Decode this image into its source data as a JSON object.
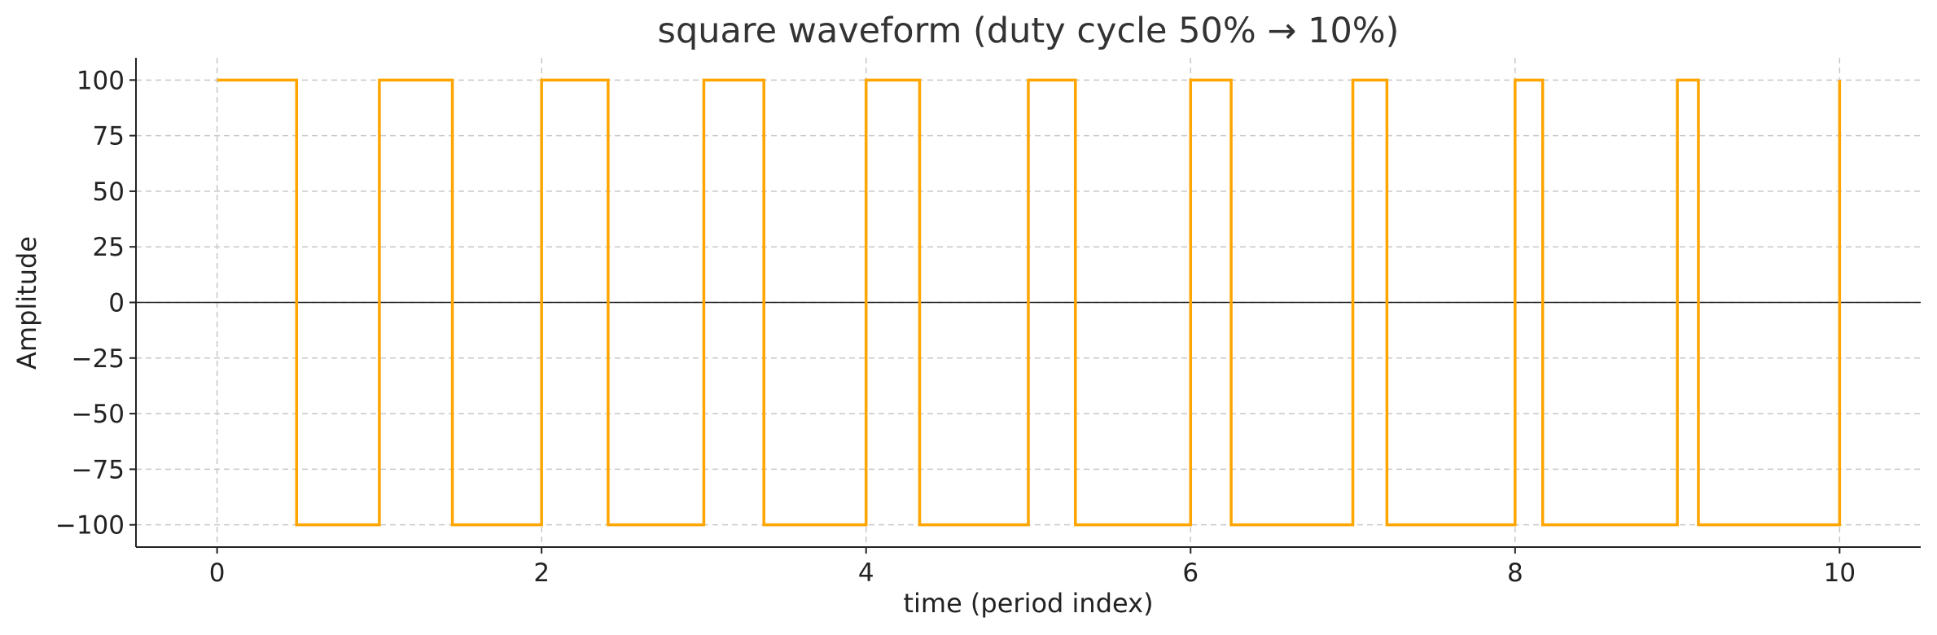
{
  "chart_data": {
    "type": "line",
    "title": "square waveform (duty cycle 50% → 10%)",
    "xlabel": "time (period index)",
    "ylabel": "Amplitude",
    "xlim": [
      -0.5,
      10.5
    ],
    "ylim": [
      -110,
      110
    ],
    "xticks": [
      0,
      2,
      4,
      6,
      8,
      10
    ],
    "yticks": [
      100,
      75,
      50,
      25,
      0,
      -25,
      -50,
      -75,
      -100
    ],
    "xtick_labels": [
      "0",
      "2",
      "4",
      "6",
      "8",
      "10"
    ],
    "ytick_labels": [
      "100",
      "75",
      "50",
      "25",
      "0",
      "−25",
      "−50",
      "−75",
      "−100"
    ],
    "grid": true,
    "zero_line": true,
    "series": [
      {
        "color": "#FFA500",
        "step": "post",
        "x": [
          0,
          0.49,
          1.0,
          1.45,
          2.0,
          2.41,
          3.0,
          3.37,
          4.0,
          4.33,
          5.0,
          5.29,
          6.0,
          6.25,
          7.0,
          7.21,
          8.0,
          8.17,
          9.0,
          9.13,
          10.0
        ],
        "y": [
          100,
          -100,
          100,
          -100,
          100,
          -100,
          100,
          -100,
          100,
          -100,
          100,
          -100,
          100,
          -100,
          100,
          -100,
          100,
          -100,
          100,
          -100,
          100
        ]
      }
    ]
  }
}
